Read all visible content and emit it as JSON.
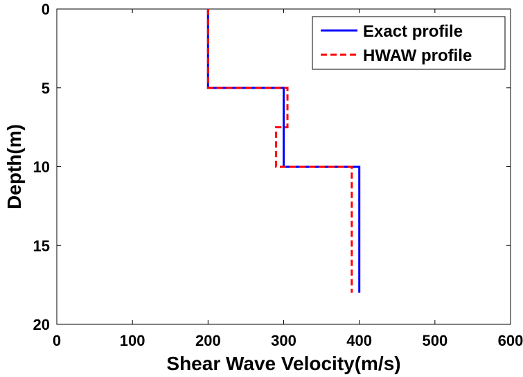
{
  "chart_data": {
    "type": "line",
    "title": "",
    "xlabel": "Shear Wave Velocity(m/s)",
    "ylabel": "Depth(m)",
    "xlim": [
      0,
      600
    ],
    "ylim": [
      0,
      20
    ],
    "y_inverted": true,
    "xticks": [
      0,
      100,
      200,
      300,
      400,
      500,
      600
    ],
    "yticks": [
      0,
      5,
      10,
      15,
      20
    ],
    "grid": false,
    "legend_position": "top-right",
    "series": [
      {
        "name": "Exact profile",
        "color": "#0000ff",
        "style": "solid",
        "points": [
          [
            200,
            0
          ],
          [
            200,
            5
          ],
          [
            300,
            5
          ],
          [
            300,
            10
          ],
          [
            400,
            10
          ],
          [
            400,
            18
          ]
        ]
      },
      {
        "name": "HWAW profile",
        "color": "#ff0000",
        "style": "dashed",
        "points": [
          [
            200,
            0
          ],
          [
            200,
            5
          ],
          [
            305,
            5
          ],
          [
            305,
            7.5
          ],
          [
            290,
            7.5
          ],
          [
            290,
            10
          ],
          [
            390,
            10
          ],
          [
            390,
            18
          ]
        ]
      }
    ]
  }
}
